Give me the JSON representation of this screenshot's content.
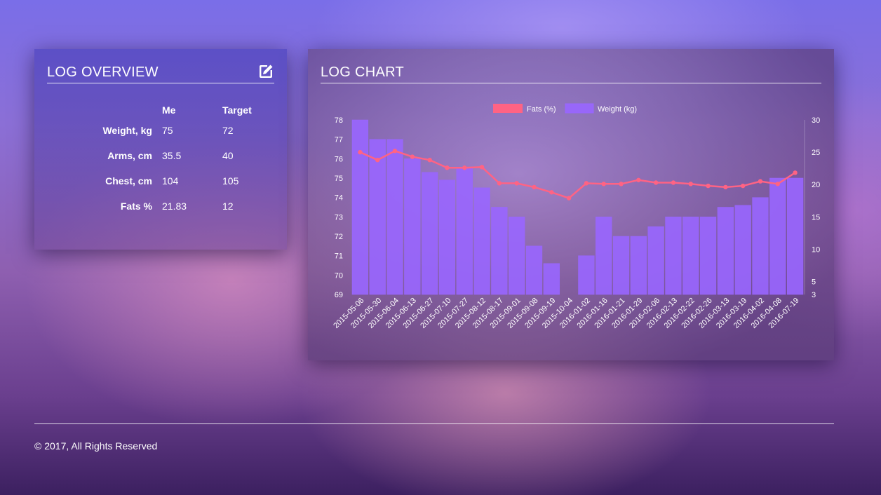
{
  "overview": {
    "title": "LOG OVERVIEW",
    "edit_icon": "edit-icon",
    "columns": [
      "Me",
      "Target"
    ],
    "rows": [
      {
        "label": "Weight, kg",
        "me": "75",
        "target": "72"
      },
      {
        "label": "Arms, cm",
        "me": "35.5",
        "target": "40"
      },
      {
        "label": "Chest, cm",
        "me": "104",
        "target": "105"
      },
      {
        "label": "Fats %",
        "me": "21.83",
        "target": "12"
      }
    ]
  },
  "log_chart": {
    "title": "LOG CHART"
  },
  "chart_data": {
    "type": "bar",
    "categories": [
      "2015-05-06",
      "2015-05-30",
      "2015-06-04",
      "2015-06-13",
      "2015-06-27",
      "2015-07-10",
      "2015-07-27",
      "2015-08-12",
      "2015-08-17",
      "2015-09-01",
      "2015-09-08",
      "2015-09-19",
      "2015-10-04",
      "2016-01-02",
      "2016-01-16",
      "2016-01-21",
      "2016-01-29",
      "2016-02-06",
      "2016-02-13",
      "2016-02-22",
      "2016-02-26",
      "2016-03-13",
      "2016-03-19",
      "2016-04-02",
      "2016-04-08",
      "2016-07-19"
    ],
    "series": [
      {
        "name": "Weight (kg)",
        "type": "bar",
        "axis": "left",
        "color": "#9966ff",
        "values": [
          78,
          77,
          77,
          76,
          75.3,
          74.9,
          75.5,
          74.5,
          73.5,
          73,
          71.5,
          70.6,
          68.5,
          71,
          73,
          72,
          72,
          72.5,
          73,
          73,
          73,
          73.5,
          73.6,
          74,
          75,
          75
        ]
      },
      {
        "name": "Fats (%)",
        "type": "line",
        "axis": "right",
        "color": "#ff6384",
        "values": [
          25,
          23.8,
          25.2,
          24.3,
          23.8,
          22.6,
          22.6,
          22.7,
          20.2,
          20.2,
          19.6,
          18.8,
          17.9,
          20.2,
          20.1,
          20.1,
          20.7,
          20.3,
          20.3,
          20.1,
          19.8,
          19.6,
          19.8,
          20.5,
          20.1,
          21.83
        ]
      }
    ],
    "legend": {
      "position": "top",
      "entries": [
        "Fats (%)",
        "Weight (kg)"
      ]
    },
    "y_left": {
      "min": 69,
      "max": 78,
      "ticks": [
        "78",
        "77",
        "76",
        "75",
        "74",
        "73",
        "72",
        "71",
        "70",
        "69"
      ]
    },
    "y_right": {
      "min": 3,
      "max": 30,
      "ticks": [
        "30",
        "25",
        "20",
        "15",
        "10",
        "5",
        "3"
      ]
    },
    "grid": false
  },
  "footer": {
    "copyright": "© 2017, All Rights Reserved"
  }
}
